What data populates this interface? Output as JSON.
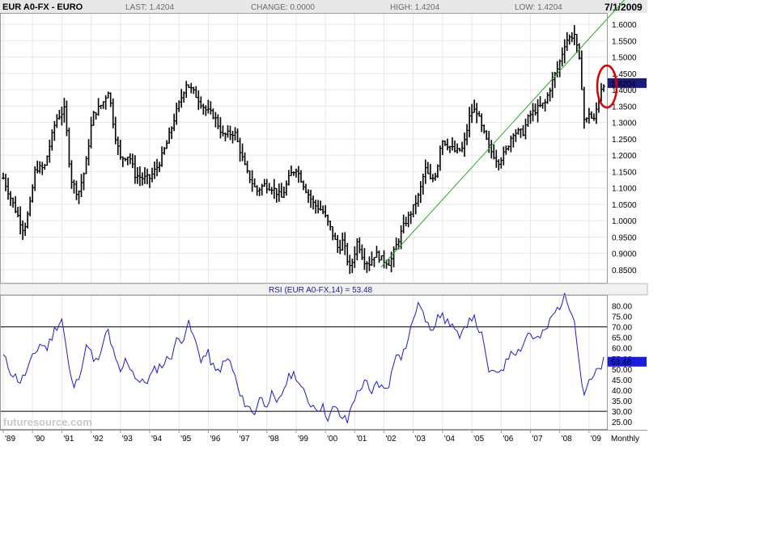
{
  "header": {
    "title": "EUR A0-FX - EURO",
    "last": "LAST: 1.4204",
    "change": "CHANGE: 0.0000",
    "high": "HIGH: 1.4204",
    "low": "LOW: 1.4204",
    "date": "7/1/2009"
  },
  "rsi_title": "RSI (EUR A0-FX,14) = 53.48",
  "x_period_label": "Monthly",
  "watermark": "futuresource.com",
  "colors": {
    "price": "#000000",
    "trendline": "#22aa22",
    "rsi": "#1a1ad0",
    "badge": "#1a1a80",
    "rsi_badge": "#1a1ae0",
    "circle": "#dd0000",
    "grid": "#e6e6e6",
    "header_bg": "#e8e8e8"
  },
  "chart_data": [
    {
      "type": "ohlc",
      "name": "price",
      "x_labels": [
        "'89",
        "'90",
        "'91",
        "'92",
        "'93",
        "'94",
        "'95",
        "'96",
        "'97",
        "'98",
        "'99",
        "'00",
        "'01",
        "'02",
        "'03",
        "'04",
        "'05",
        "'06",
        "'07",
        "'08",
        "'09"
      ],
      "x_years": [
        1989,
        1990,
        1991,
        1992,
        1993,
        1994,
        1995,
        1996,
        1997,
        1998,
        1999,
        2000,
        2001,
        2002,
        2003,
        2004,
        2005,
        2006,
        2007,
        2008,
        2009
      ],
      "x_range": [
        1989.0,
        2009.5
      ],
      "y_ticks": [
        "1.6000",
        "1.5500",
        "1.5000",
        "1.4500",
        "1.4000",
        "1.3500",
        "1.3000",
        "1.2500",
        "1.2000",
        "1.1500",
        "1.1000",
        "1.0500",
        "1.0000",
        "0.9500",
        "0.9000",
        "0.8500"
      ],
      "ylim": [
        0.82,
        1.625
      ],
      "last_value": "1.4204",
      "trendline": [
        [
          2001.9,
          0.858
        ],
        [
          2009.5,
          1.605
        ]
      ],
      "highlight_circle": {
        "x": 2009.5,
        "y": 1.41
      },
      "anchors": [
        [
          1989.0,
          1.13
        ],
        [
          1989.25,
          1.07
        ],
        [
          1989.7,
          0.97
        ],
        [
          1989.9,
          1.04
        ],
        [
          1990.1,
          1.16
        ],
        [
          1990.4,
          1.16
        ],
        [
          1990.8,
          1.31
        ],
        [
          1991.1,
          1.34
        ],
        [
          1991.3,
          1.13
        ],
        [
          1991.55,
          1.08
        ],
        [
          1991.8,
          1.16
        ],
        [
          1992.05,
          1.32
        ],
        [
          1992.4,
          1.36
        ],
        [
          1992.6,
          1.4
        ],
        [
          1992.8,
          1.27
        ],
        [
          1993.0,
          1.19
        ],
        [
          1993.3,
          1.2
        ],
        [
          1993.5,
          1.14
        ],
        [
          1993.75,
          1.13
        ],
        [
          1994.0,
          1.13
        ],
        [
          1994.3,
          1.17
        ],
        [
          1994.6,
          1.24
        ],
        [
          1994.9,
          1.33
        ],
        [
          1995.25,
          1.42
        ],
        [
          1995.6,
          1.38
        ],
        [
          1995.9,
          1.34
        ],
        [
          1996.2,
          1.32
        ],
        [
          1996.5,
          1.26
        ],
        [
          1996.9,
          1.27
        ],
        [
          1997.3,
          1.15
        ],
        [
          1997.65,
          1.09
        ],
        [
          1997.9,
          1.11
        ],
        [
          1998.2,
          1.1
        ],
        [
          1998.5,
          1.07
        ],
        [
          1998.8,
          1.14
        ],
        [
          1999.0,
          1.16
        ],
        [
          1999.3,
          1.1
        ],
        [
          1999.6,
          1.05
        ],
        [
          1999.9,
          1.03
        ],
        [
          2000.2,
          0.97
        ],
        [
          2000.45,
          0.91
        ],
        [
          2000.6,
          0.94
        ],
        [
          2000.75,
          0.88
        ],
        [
          2000.85,
          0.85
        ],
        [
          2001.1,
          0.94
        ],
        [
          2001.3,
          0.88
        ],
        [
          2001.5,
          0.87
        ],
        [
          2001.7,
          0.9
        ],
        [
          2001.95,
          0.88
        ],
        [
          2002.2,
          0.87
        ],
        [
          2002.4,
          0.92
        ],
        [
          2002.7,
          0.99
        ],
        [
          2002.95,
          1.03
        ],
        [
          2003.2,
          1.08
        ],
        [
          2003.4,
          1.16
        ],
        [
          2003.6,
          1.12
        ],
        [
          2003.8,
          1.15
        ],
        [
          2003.95,
          1.25
        ],
        [
          2004.2,
          1.23
        ],
        [
          2004.45,
          1.21
        ],
        [
          2004.7,
          1.22
        ],
        [
          2004.95,
          1.33
        ],
        [
          2005.15,
          1.34
        ],
        [
          2005.35,
          1.28
        ],
        [
          2005.6,
          1.22
        ],
        [
          2005.9,
          1.18
        ],
        [
          2006.15,
          1.21
        ],
        [
          2006.4,
          1.27
        ],
        [
          2006.75,
          1.27
        ],
        [
          2006.95,
          1.32
        ],
        [
          2007.2,
          1.34
        ],
        [
          2007.5,
          1.36
        ],
        [
          2007.8,
          1.44
        ],
        [
          2007.95,
          1.47
        ],
        [
          2008.2,
          1.55
        ],
        [
          2008.5,
          1.57
        ],
        [
          2008.7,
          1.47
        ],
        [
          2008.85,
          1.29
        ],
        [
          2009.0,
          1.33
        ],
        [
          2009.15,
          1.3
        ],
        [
          2009.3,
          1.36
        ],
        [
          2009.45,
          1.42
        ]
      ]
    },
    {
      "type": "line",
      "name": "RSI",
      "title": "RSI (EUR A0-FX,14) = 53.48",
      "x_range": [
        1989.0,
        2009.5
      ],
      "y_ticks": [
        "80.00",
        "75.00",
        "70.00",
        "65.00",
        "60.00",
        "55.00",
        "50.00",
        "45.00",
        "40.00",
        "35.00",
        "30.00",
        "25.00"
      ],
      "ylim": [
        22,
        84
      ],
      "reference_lines": [
        70,
        30
      ],
      "last_value": "53.48",
      "anchors": [
        [
          1989.0,
          56
        ],
        [
          1989.3,
          48
        ],
        [
          1989.6,
          44
        ],
        [
          1989.8,
          49
        ],
        [
          1990.0,
          55
        ],
        [
          1990.25,
          62
        ],
        [
          1990.5,
          60
        ],
        [
          1990.8,
          70
        ],
        [
          1991.0,
          74
        ],
        [
          1991.15,
          60
        ],
        [
          1991.3,
          45
        ],
        [
          1991.45,
          41
        ],
        [
          1991.7,
          53
        ],
        [
          1991.9,
          63
        ],
        [
          1992.1,
          52
        ],
        [
          1992.35,
          57
        ],
        [
          1992.55,
          70
        ],
        [
          1992.8,
          55
        ],
        [
          1993.0,
          48
        ],
        [
          1993.2,
          55
        ],
        [
          1993.45,
          48
        ],
        [
          1993.7,
          43
        ],
        [
          1993.95,
          45
        ],
        [
          1994.2,
          50
        ],
        [
          1994.5,
          53
        ],
        [
          1994.75,
          57
        ],
        [
          1994.9,
          63
        ],
        [
          1995.15,
          65
        ],
        [
          1995.3,
          72
        ],
        [
          1995.5,
          65
        ],
        [
          1995.75,
          55
        ],
        [
          1996.0,
          57
        ],
        [
          1996.25,
          48
        ],
        [
          1996.5,
          52
        ],
        [
          1996.7,
          55
        ],
        [
          1996.9,
          47
        ],
        [
          1997.1,
          36
        ],
        [
          1997.35,
          33
        ],
        [
          1997.55,
          28
        ],
        [
          1997.75,
          37
        ],
        [
          1997.95,
          33
        ],
        [
          1998.15,
          38
        ],
        [
          1998.35,
          32
        ],
        [
          1998.6,
          42
        ],
        [
          1998.85,
          48
        ],
        [
          1999.0,
          47
        ],
        [
          1999.2,
          40
        ],
        [
          1999.4,
          35
        ],
        [
          1999.65,
          32
        ],
        [
          1999.9,
          32
        ],
        [
          2000.1,
          27
        ],
        [
          2000.3,
          32
        ],
        [
          2000.5,
          28
        ],
        [
          2000.75,
          25
        ],
        [
          2000.95,
          36
        ],
        [
          2001.15,
          39
        ],
        [
          2001.35,
          46
        ],
        [
          2001.55,
          36
        ],
        [
          2001.75,
          44
        ],
        [
          2002.0,
          40
        ],
        [
          2002.2,
          44
        ],
        [
          2002.45,
          60
        ],
        [
          2002.6,
          56
        ],
        [
          2002.85,
          65
        ],
        [
          2003.05,
          77
        ],
        [
          2003.25,
          81
        ],
        [
          2003.45,
          70
        ],
        [
          2003.7,
          70
        ],
        [
          2003.85,
          78
        ],
        [
          2004.05,
          73
        ],
        [
          2004.3,
          72
        ],
        [
          2004.6,
          63
        ],
        [
          2004.75,
          69
        ],
        [
          2004.95,
          76
        ],
        [
          2005.15,
          72
        ],
        [
          2005.35,
          65
        ],
        [
          2005.55,
          50
        ],
        [
          2005.75,
          47
        ],
        [
          2005.95,
          50
        ],
        [
          2006.15,
          52
        ],
        [
          2006.35,
          60
        ],
        [
          2006.55,
          58
        ],
        [
          2006.75,
          62
        ],
        [
          2006.95,
          68
        ],
        [
          2007.15,
          64
        ],
        [
          2007.35,
          65
        ],
        [
          2007.55,
          69
        ],
        [
          2007.75,
          75
        ],
        [
          2007.95,
          79
        ],
        [
          2008.15,
          84
        ],
        [
          2008.35,
          80
        ],
        [
          2008.5,
          75
        ],
        [
          2008.65,
          55
        ],
        [
          2008.8,
          38
        ],
        [
          2008.95,
          42
        ],
        [
          2009.1,
          45
        ],
        [
          2009.25,
          48
        ],
        [
          2009.4,
          51
        ],
        [
          2009.5,
          53.48
        ]
      ]
    }
  ]
}
